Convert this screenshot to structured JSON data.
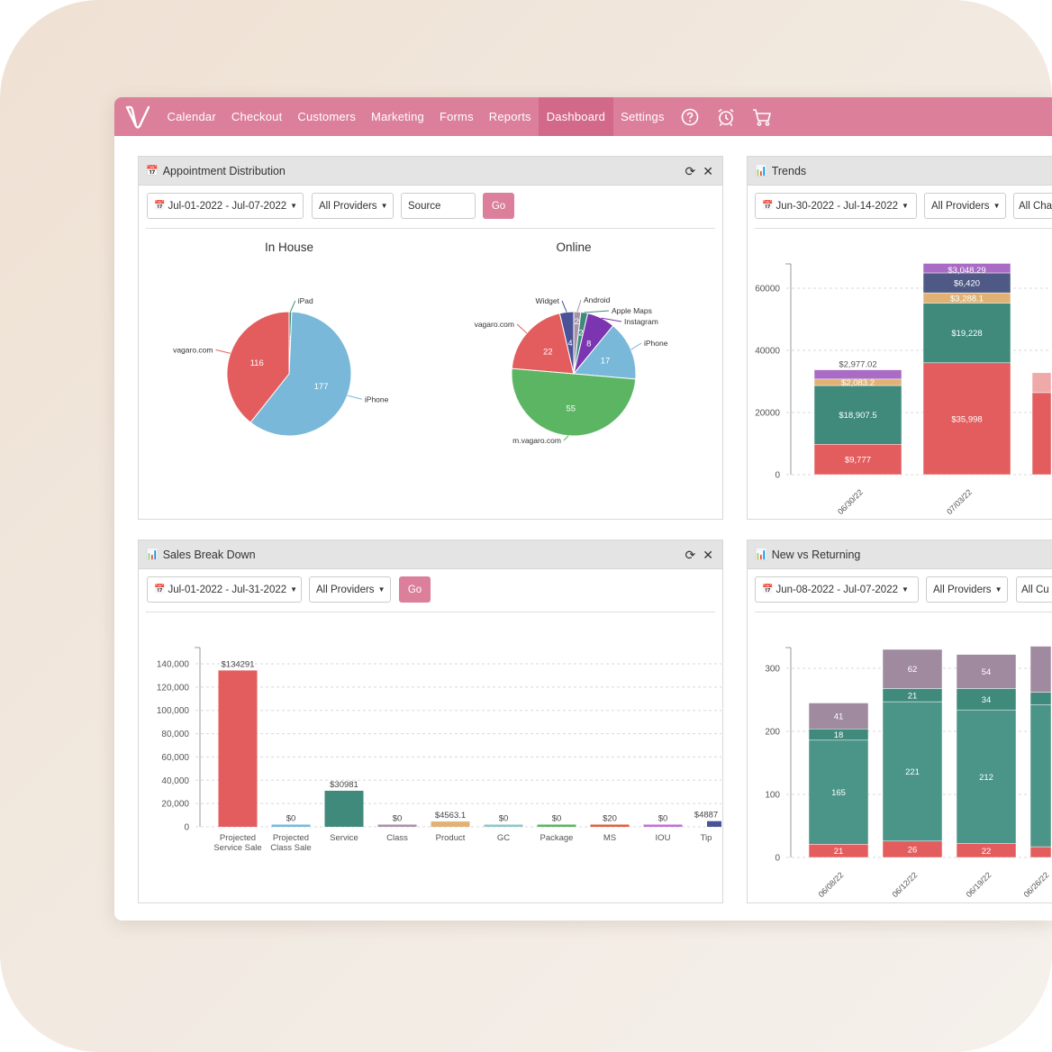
{
  "nav": {
    "items": [
      "Calendar",
      "Checkout",
      "Customers",
      "Marketing",
      "Forms",
      "Reports",
      "Dashboard",
      "Settings"
    ],
    "active": "Dashboard",
    "icons": [
      "help-icon",
      "alarm-clock-icon",
      "cart-icon"
    ],
    "color": "#db7f9a",
    "active_color": "#d2688a"
  },
  "appointment": {
    "title": "Appointment Distribution",
    "date_range": "Jul-01-2022 - Jul-07-2022",
    "providers": "All Providers",
    "source_placeholder": "Source",
    "go": "Go",
    "chart_data": [
      {
        "type": "pie",
        "title": "In House",
        "slices": [
          {
            "name": "iPad",
            "value": 2,
            "color": "#3f8a7b"
          },
          {
            "name": "iPhone",
            "value": 177,
            "color": "#7ab8d9"
          },
          {
            "name": "vagaro.com",
            "value": 116,
            "color": "#e35d5e"
          }
        ]
      },
      {
        "type": "pie",
        "title": "Online",
        "slices": [
          {
            "name": "Android",
            "value": 2,
            "color": "#a893a8"
          },
          {
            "name": "Apple Maps",
            "value": 2,
            "color": "#3f8a7b"
          },
          {
            "name": "Instagram",
            "value": 8,
            "color": "#7b35b0"
          },
          {
            "name": "iPhone",
            "value": 17,
            "color": "#7ab8d9"
          },
          {
            "name": "m.vagaro.com",
            "value": 55,
            "color": "#5cb562"
          },
          {
            "name": "vagaro.com",
            "value": 22,
            "color": "#e35d5e"
          },
          {
            "name": "Widget",
            "value": 4,
            "color": "#4a5298"
          }
        ]
      }
    ]
  },
  "trends": {
    "title": "Trends",
    "date_range": "Jun-30-2022 - Jul-14-2022",
    "providers": "All Providers",
    "channels": "All Cha",
    "chart_data": {
      "type": "bar",
      "stacked": true,
      "categories": [
        "06/30/22",
        "07/03/22",
        ""
      ],
      "yticks": [
        0,
        20000,
        40000,
        60000
      ],
      "ylim": [
        0,
        68000
      ],
      "grid": true,
      "series": [
        {
          "color": "#e35d5e",
          "values": [
            9777,
            35998,
            26400
          ]
        },
        {
          "color": "#3f8a7b",
          "values": [
            18907.5,
            19228,
            null
          ]
        },
        {
          "color": "#e1b273",
          "values": [
            2083.2,
            3288.1,
            null
          ]
        },
        {
          "color": "#d85f3c",
          "values": [
            null,
            null,
            null
          ]
        },
        {
          "color": "#4e5a85",
          "values": [
            null,
            6420,
            null
          ]
        },
        {
          "color": "#a96bc3",
          "values": [
            2977.02,
            3048.29,
            null
          ]
        },
        {
          "color": "#f0a9a9",
          "values": [
            null,
            null,
            6400
          ]
        }
      ]
    }
  },
  "sales": {
    "title": "Sales Break Down",
    "date_range": "Jul-01-2022 - Jul-31-2022",
    "providers": "All Providers",
    "go": "Go",
    "chart_data": {
      "type": "bar",
      "categories": [
        [
          "Projected",
          "Service Sale"
        ],
        [
          "Projected",
          "Class Sale"
        ],
        [
          "Service"
        ],
        [
          "Class"
        ],
        [
          "Product"
        ],
        [
          "GC"
        ],
        [
          "Package"
        ],
        [
          "MS"
        ],
        [
          "IOU"
        ],
        [
          "Tip"
        ]
      ],
      "values": [
        134291,
        0,
        30981,
        0,
        4563.1,
        0,
        0,
        20,
        0,
        4887
      ],
      "colors": [
        "#e35d5e",
        "#7ab8d9",
        "#3f8a7b",
        "#a893a8",
        "#e1b273",
        "#8cc7c7",
        "#5cb562",
        "#e0603e",
        "#c070d6",
        "#4a5298"
      ],
      "yticks": [
        0,
        20000,
        40000,
        60000,
        80000,
        100000,
        120000,
        140000
      ],
      "ytick_labels": [
        "0",
        "20,000",
        "40,000",
        "60,000",
        "80,000",
        "100,000",
        "120,000",
        "140,000"
      ],
      "ylim": [
        0,
        150000
      ],
      "grid": true
    }
  },
  "nvr": {
    "title": "New vs Returning",
    "date_range": "Jun-08-2022 - Jul-07-2022",
    "providers": "All Providers",
    "customers": "All Cu",
    "chart_data": {
      "type": "bar",
      "stacked": true,
      "categories": [
        "06/08/22",
        "06/12/22",
        "06/19/22",
        "06/26/22"
      ],
      "yticks": [
        0,
        100,
        200,
        300
      ],
      "ylim": [
        0,
        335
      ],
      "grid": true,
      "series": [
        {
          "color": "#e35d5e",
          "values": [
            21,
            26,
            22,
            17
          ]
        },
        {
          "color": "#4a9488",
          "values": [
            165,
            221,
            212,
            225
          ]
        },
        {
          "color": "#3f8a7b",
          "values": [
            18,
            21,
            34,
            20
          ]
        },
        {
          "color": "#9f8aa0",
          "values": [
            41,
            62,
            54,
            73
          ]
        }
      ]
    }
  }
}
